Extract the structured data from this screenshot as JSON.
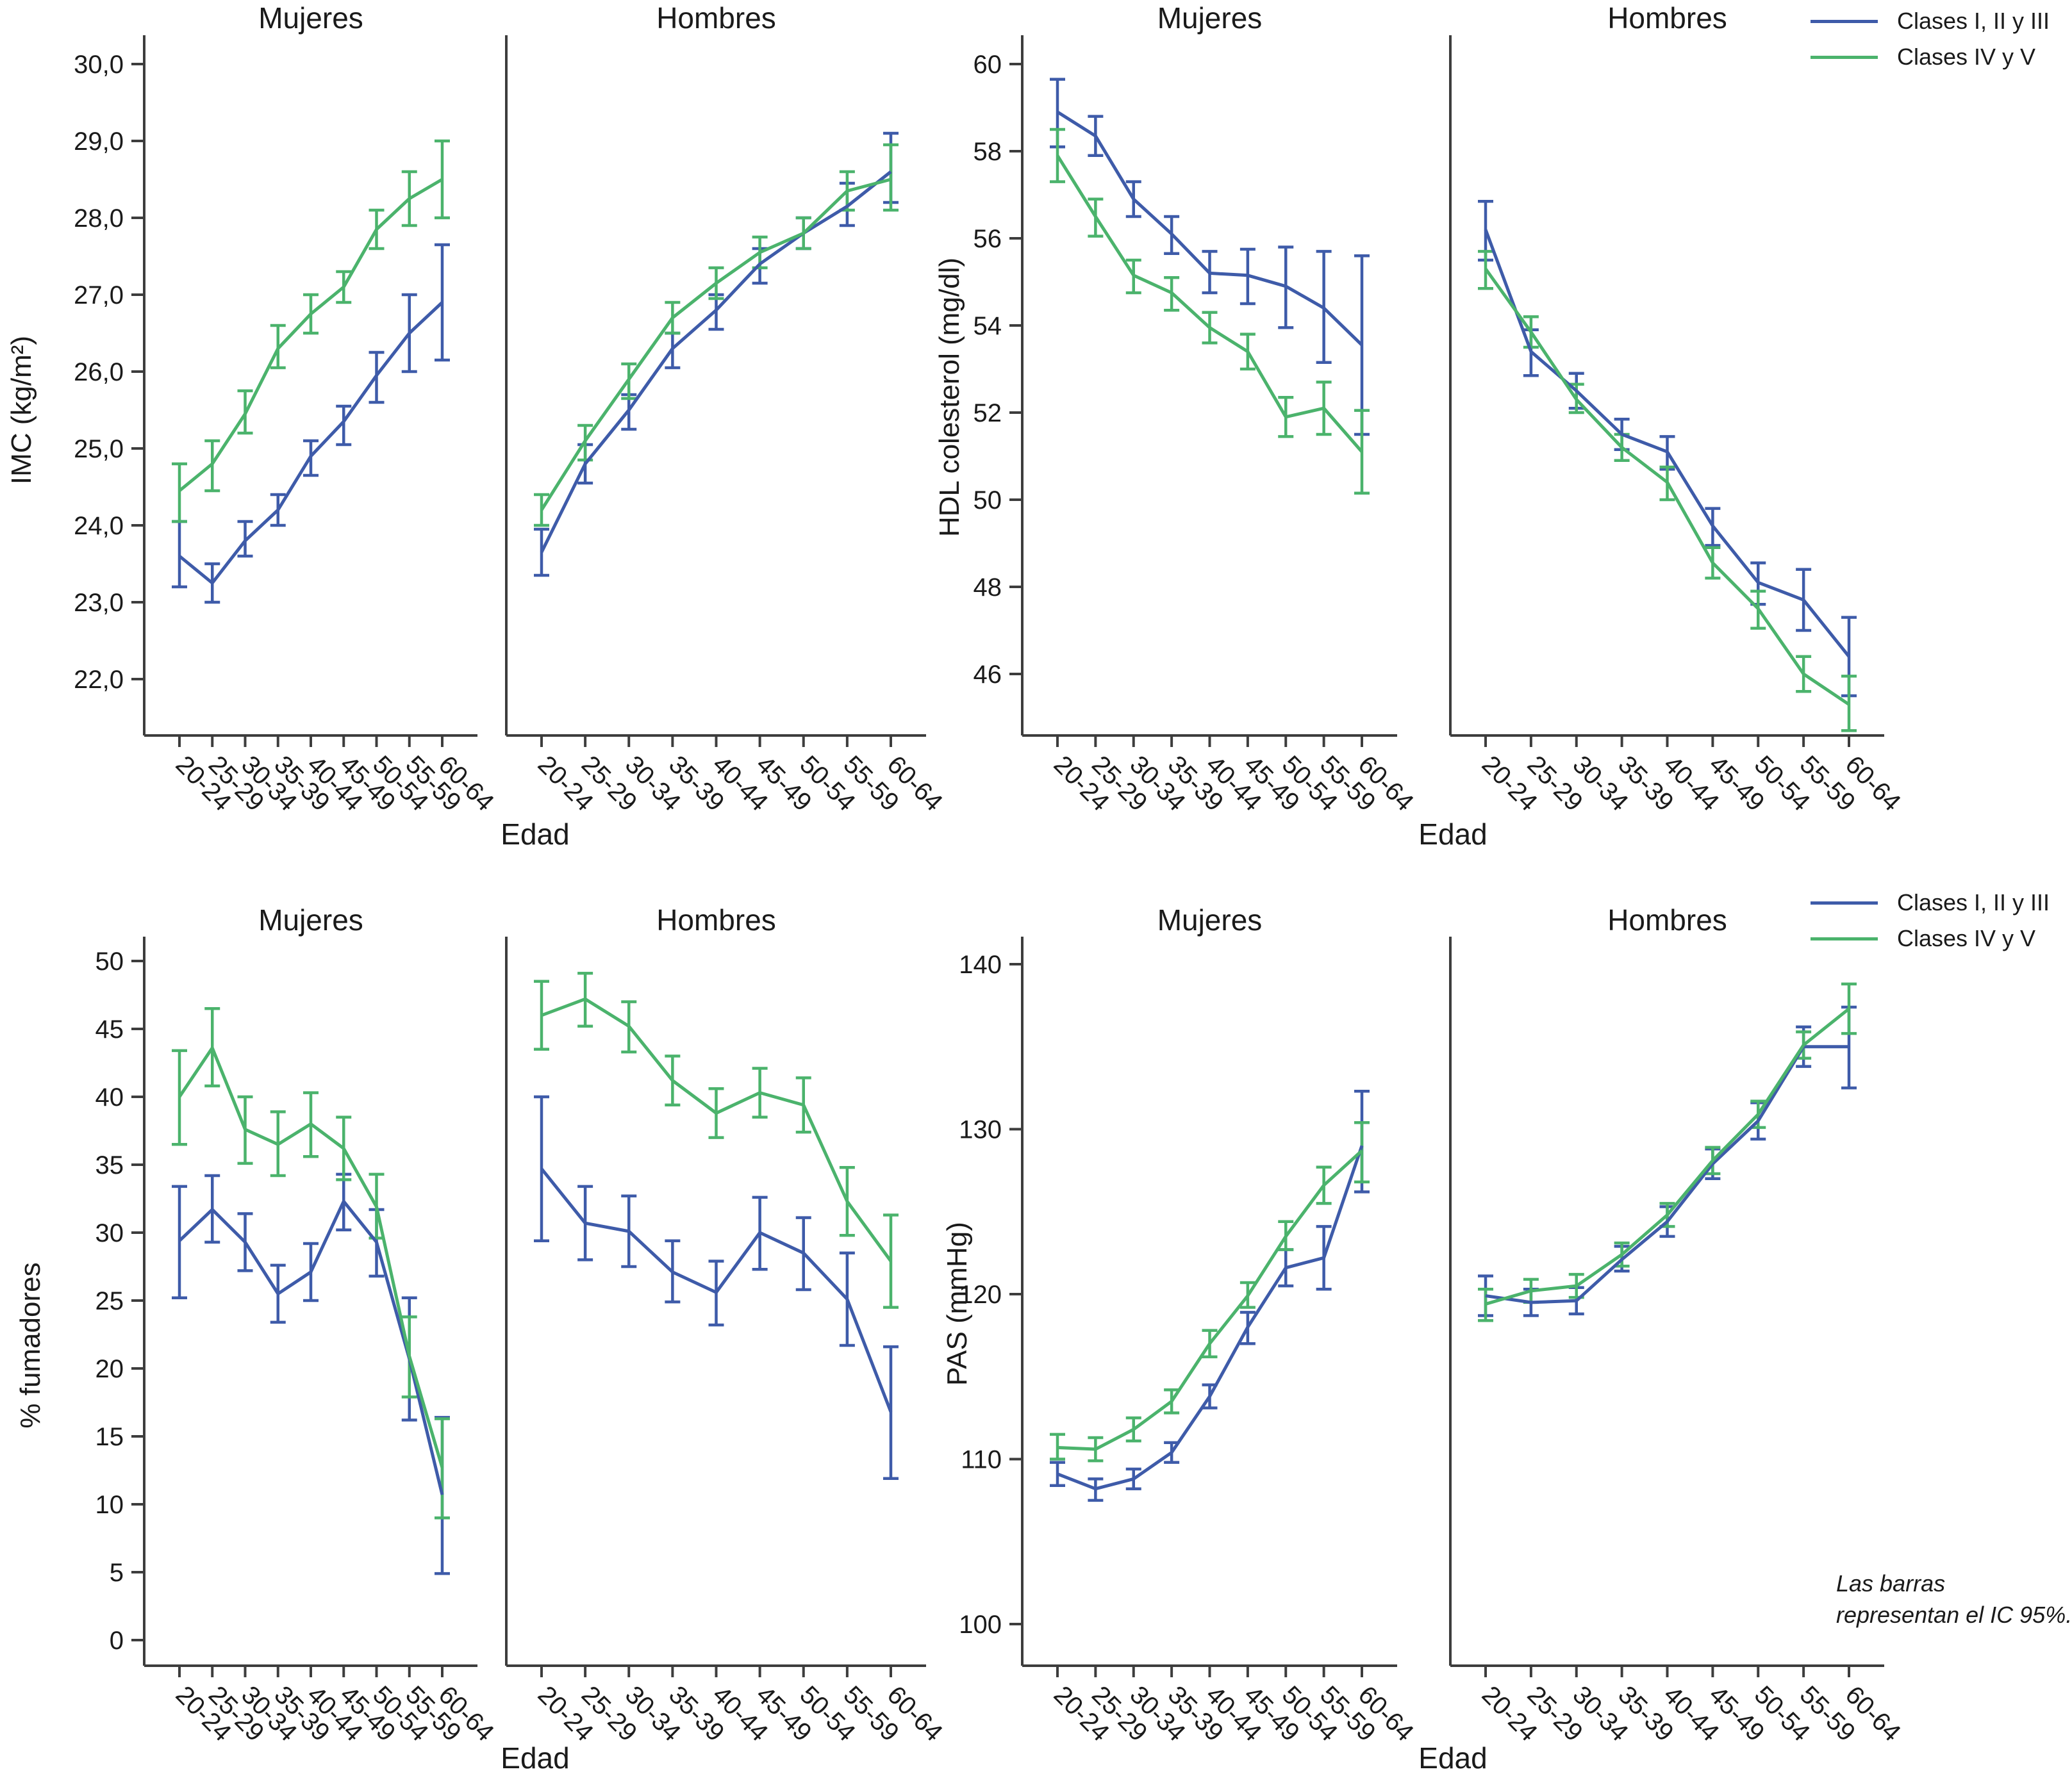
{
  "xlabel": "Edad",
  "categories": [
    "20-24",
    "25-29",
    "30-34",
    "35-39",
    "40-44",
    "45-49",
    "50-54",
    "55-59",
    "60-64"
  ],
  "colors": {
    "blue": "#3E5BA9",
    "green": "#4BB36C",
    "axis": "#3d3d3d",
    "text": "#1a1a1a"
  },
  "legend": {
    "entries": [
      {
        "label": "Clases I, II y III",
        "color": "blue"
      },
      {
        "label": "Clases IV y V",
        "color": "green"
      }
    ]
  },
  "note": {
    "line1": "Las barras",
    "line2": "representan el IC 95%."
  },
  "chart_data": [
    {
      "id": "imc",
      "type": "line",
      "ylabel": "IMC (kg/m²)",
      "ylim": [
        21.6,
        30.4
      ],
      "yticks": [
        22,
        23,
        24,
        25,
        26,
        27,
        28,
        29,
        30
      ],
      "ytick_labels": [
        "22,0",
        "23,0",
        "24,0",
        "25,0",
        "26,0",
        "27,0",
        "28,0",
        "29,0",
        "30,0"
      ],
      "panels": [
        {
          "title": "Mujeres",
          "series": [
            {
              "name": "Clases I, II y III",
              "color": "blue",
              "values": [
                23.6,
                23.25,
                23.8,
                24.2,
                24.9,
                25.35,
                25.95,
                26.5,
                26.9
              ],
              "ci_low": [
                23.2,
                23.0,
                23.6,
                24.0,
                24.65,
                25.05,
                25.6,
                26.0,
                26.15
              ],
              "ci_high": [
                24.05,
                23.5,
                24.05,
                24.4,
                25.1,
                25.55,
                26.25,
                27.0,
                27.65
              ]
            },
            {
              "name": "Clases IV y V",
              "color": "green",
              "values": [
                24.45,
                24.8,
                25.45,
                26.3,
                26.75,
                27.1,
                27.85,
                28.25,
                28.5
              ],
              "ci_low": [
                24.05,
                24.45,
                25.2,
                26.05,
                26.5,
                26.9,
                27.6,
                27.9,
                28.0
              ],
              "ci_high": [
                24.8,
                25.1,
                25.75,
                26.6,
                27.0,
                27.3,
                28.1,
                28.6,
                29.0
              ]
            }
          ]
        },
        {
          "title": "Hombres",
          "series": [
            {
              "name": "Clases I, II y III",
              "color": "blue",
              "values": [
                23.65,
                24.8,
                25.5,
                26.3,
                26.8,
                27.4,
                27.8,
                28.15,
                28.6
              ],
              "ci_low": [
                23.35,
                24.55,
                25.25,
                26.05,
                26.55,
                27.15,
                27.6,
                27.9,
                28.2
              ],
              "ci_high": [
                23.95,
                25.05,
                25.7,
                26.5,
                27.0,
                27.6,
                28.0,
                28.45,
                29.1
              ]
            },
            {
              "name": "Clases IV y V",
              "color": "green",
              "values": [
                24.2,
                25.1,
                25.9,
                26.7,
                27.15,
                27.55,
                27.8,
                28.35,
                28.5
              ],
              "ci_low": [
                24.0,
                24.85,
                25.65,
                26.5,
                26.95,
                27.35,
                27.6,
                28.1,
                28.1
              ],
              "ci_high": [
                24.4,
                25.3,
                26.1,
                26.9,
                27.35,
                27.75,
                28.0,
                28.6,
                28.95
              ]
            }
          ]
        }
      ]
    },
    {
      "id": "hdl",
      "type": "line",
      "ylabel": "HDL colesterol (mg/dl)",
      "ylim": [
        44.4,
        60.6
      ],
      "yticks": [
        46,
        48,
        50,
        52,
        54,
        56,
        58,
        60
      ],
      "ytick_labels": [
        "46",
        "48",
        "50",
        "52",
        "54",
        "56",
        "58",
        "60"
      ],
      "panels": [
        {
          "title": "Mujeres",
          "series": [
            {
              "name": "Clases I, II y III",
              "color": "blue",
              "values": [
                58.9,
                58.35,
                56.9,
                56.1,
                55.2,
                55.15,
                54.9,
                54.4,
                53.55
              ],
              "ci_low": [
                58.1,
                57.9,
                56.5,
                55.65,
                54.75,
                54.5,
                53.95,
                53.15,
                51.5
              ],
              "ci_high": [
                59.65,
                58.8,
                57.3,
                56.5,
                55.7,
                55.75,
                55.8,
                55.7,
                55.6
              ]
            },
            {
              "name": "Clases IV y V",
              "color": "green",
              "values": [
                57.9,
                56.5,
                55.15,
                54.75,
                53.95,
                53.4,
                51.9,
                52.1,
                51.1
              ],
              "ci_low": [
                57.3,
                56.05,
                54.75,
                54.35,
                53.6,
                53.0,
                51.45,
                51.5,
                50.15
              ],
              "ci_high": [
                58.5,
                56.9,
                55.5,
                55.1,
                54.3,
                53.8,
                52.35,
                52.7,
                52.05
              ]
            }
          ]
        },
        {
          "title": "Hombres",
          "series": [
            {
              "name": "Clases I, II y III",
              "color": "blue",
              "values": [
                56.2,
                53.4,
                52.5,
                51.5,
                51.1,
                49.4,
                48.1,
                47.7,
                46.4
              ],
              "ci_low": [
                55.5,
                52.85,
                52.1,
                51.15,
                50.7,
                48.95,
                47.6,
                47.0,
                45.5
              ],
              "ci_high": [
                56.85,
                53.9,
                52.9,
                51.85,
                51.45,
                49.8,
                48.55,
                48.4,
                47.3
              ]
            },
            {
              "name": "Clases IV y V",
              "color": "green",
              "values": [
                55.3,
                53.85,
                52.3,
                51.2,
                50.4,
                48.55,
                47.5,
                46.0,
                45.3
              ],
              "ci_low": [
                54.85,
                53.5,
                52.0,
                50.9,
                50.0,
                48.2,
                47.05,
                45.6,
                44.7
              ],
              "ci_high": [
                55.7,
                54.2,
                52.65,
                51.5,
                50.75,
                48.9,
                47.9,
                46.4,
                45.95
              ]
            }
          ]
        }
      ]
    },
    {
      "id": "fumadores",
      "type": "line",
      "ylabel": "% fumadores",
      "ylim": [
        0,
        52
      ],
      "yticks": [
        0,
        5,
        10,
        15,
        20,
        25,
        30,
        35,
        40,
        45,
        50
      ],
      "ytick_labels": [
        "0",
        "5",
        "10",
        "15",
        "20",
        "25",
        "30",
        "35",
        "40",
        "45",
        "50"
      ],
      "panels": [
        {
          "title": "Mujeres",
          "series": [
            {
              "name": "Clases I, II y III",
              "color": "blue",
              "values": [
                29.4,
                31.7,
                29.3,
                25.5,
                27.1,
                32.3,
                29.3,
                20.7,
                10.7
              ],
              "ci_low": [
                25.2,
                29.3,
                27.2,
                23.4,
                25.0,
                30.2,
                26.8,
                16.2,
                4.9
              ],
              "ci_high": [
                33.4,
                34.2,
                31.4,
                27.6,
                29.2,
                34.3,
                31.7,
                25.2,
                16.4
              ]
            },
            {
              "name": "Clases IV y V",
              "color": "green",
              "values": [
                40.0,
                43.6,
                37.6,
                36.5,
                38.0,
                36.2,
                31.9,
                20.9,
                12.7
              ],
              "ci_low": [
                36.5,
                40.8,
                35.1,
                34.2,
                35.6,
                33.9,
                29.6,
                17.9,
                9.0
              ],
              "ci_high": [
                43.4,
                46.5,
                40.0,
                38.9,
                40.3,
                38.5,
                34.3,
                23.8,
                16.3
              ]
            }
          ]
        },
        {
          "title": "Hombres",
          "series": [
            {
              "name": "Clases I, II y III",
              "color": "blue",
              "values": [
                34.7,
                30.7,
                30.1,
                27.1,
                25.6,
                30.0,
                28.5,
                25.1,
                16.8
              ],
              "ci_low": [
                29.4,
                28.0,
                27.5,
                24.9,
                23.2,
                27.3,
                25.8,
                21.7,
                11.9
              ],
              "ci_high": [
                40.0,
                33.4,
                32.7,
                29.4,
                27.9,
                32.6,
                31.1,
                28.5,
                21.6
              ]
            },
            {
              "name": "Clases IV y V",
              "color": "green",
              "values": [
                46.0,
                47.2,
                45.2,
                41.2,
                38.8,
                40.3,
                39.4,
                32.3,
                27.9
              ],
              "ci_low": [
                43.5,
                45.2,
                43.3,
                39.4,
                37.0,
                38.5,
                37.4,
                29.8,
                24.5
              ],
              "ci_high": [
                48.5,
                49.1,
                47.0,
                43.0,
                40.6,
                42.1,
                41.4,
                34.8,
                31.3
              ]
            }
          ]
        }
      ]
    },
    {
      "id": "pas",
      "type": "line",
      "ylabel": "PAS (mmHg)",
      "ylim": [
        97,
        143
      ],
      "yticks": [
        100,
        110,
        120,
        130,
        140
      ],
      "ytick_labels": [
        "100",
        "110",
        "120",
        "130",
        "140"
      ],
      "panels": [
        {
          "title": "Mujeres",
          "series": [
            {
              "name": "Clases I, II y III",
              "color": "blue",
              "values": [
                109.1,
                108.2,
                108.8,
                110.4,
                113.8,
                118.0,
                121.6,
                122.2,
                129.0
              ],
              "ci_low": [
                108.4,
                107.5,
                108.2,
                109.8,
                113.1,
                117.0,
                120.5,
                120.3,
                126.2
              ],
              "ci_high": [
                109.8,
                108.8,
                109.4,
                111.0,
                114.5,
                118.9,
                122.7,
                124.1,
                132.3
              ]
            },
            {
              "name": "Clases IV y V",
              "color": "green",
              "values": [
                110.7,
                110.6,
                111.8,
                113.5,
                117.0,
                119.9,
                123.5,
                126.6,
                128.7
              ],
              "ci_low": [
                110.0,
                109.9,
                111.1,
                112.8,
                116.2,
                119.2,
                122.7,
                125.5,
                126.8
              ],
              "ci_high": [
                111.5,
                111.3,
                112.5,
                114.2,
                117.8,
                120.7,
                124.4,
                127.7,
                130.4
              ]
            }
          ]
        },
        {
          "title": "Hombres",
          "series": [
            {
              "name": "Clases I, II y III",
              "color": "blue",
              "values": [
                119.9,
                119.5,
                119.6,
                122.1,
                124.4,
                127.9,
                130.5,
                135.0,
                135.0
              ],
              "ci_low": [
                118.7,
                118.7,
                118.8,
                121.4,
                123.5,
                127.0,
                129.4,
                133.8,
                132.5
              ],
              "ci_high": [
                121.1,
                120.3,
                120.4,
                122.9,
                125.3,
                128.8,
                131.6,
                136.2,
                137.4
              ]
            },
            {
              "name": "Clases IV y V",
              "color": "green",
              "values": [
                119.4,
                120.2,
                120.5,
                122.4,
                124.8,
                128.1,
                130.9,
                135.1,
                137.3
              ],
              "ci_low": [
                118.4,
                119.5,
                119.8,
                121.7,
                124.1,
                127.3,
                130.1,
                134.3,
                135.8
              ],
              "ci_high": [
                120.3,
                120.9,
                121.2,
                123.1,
                125.5,
                128.9,
                131.7,
                135.9,
                138.8
              ]
            }
          ]
        }
      ]
    }
  ]
}
